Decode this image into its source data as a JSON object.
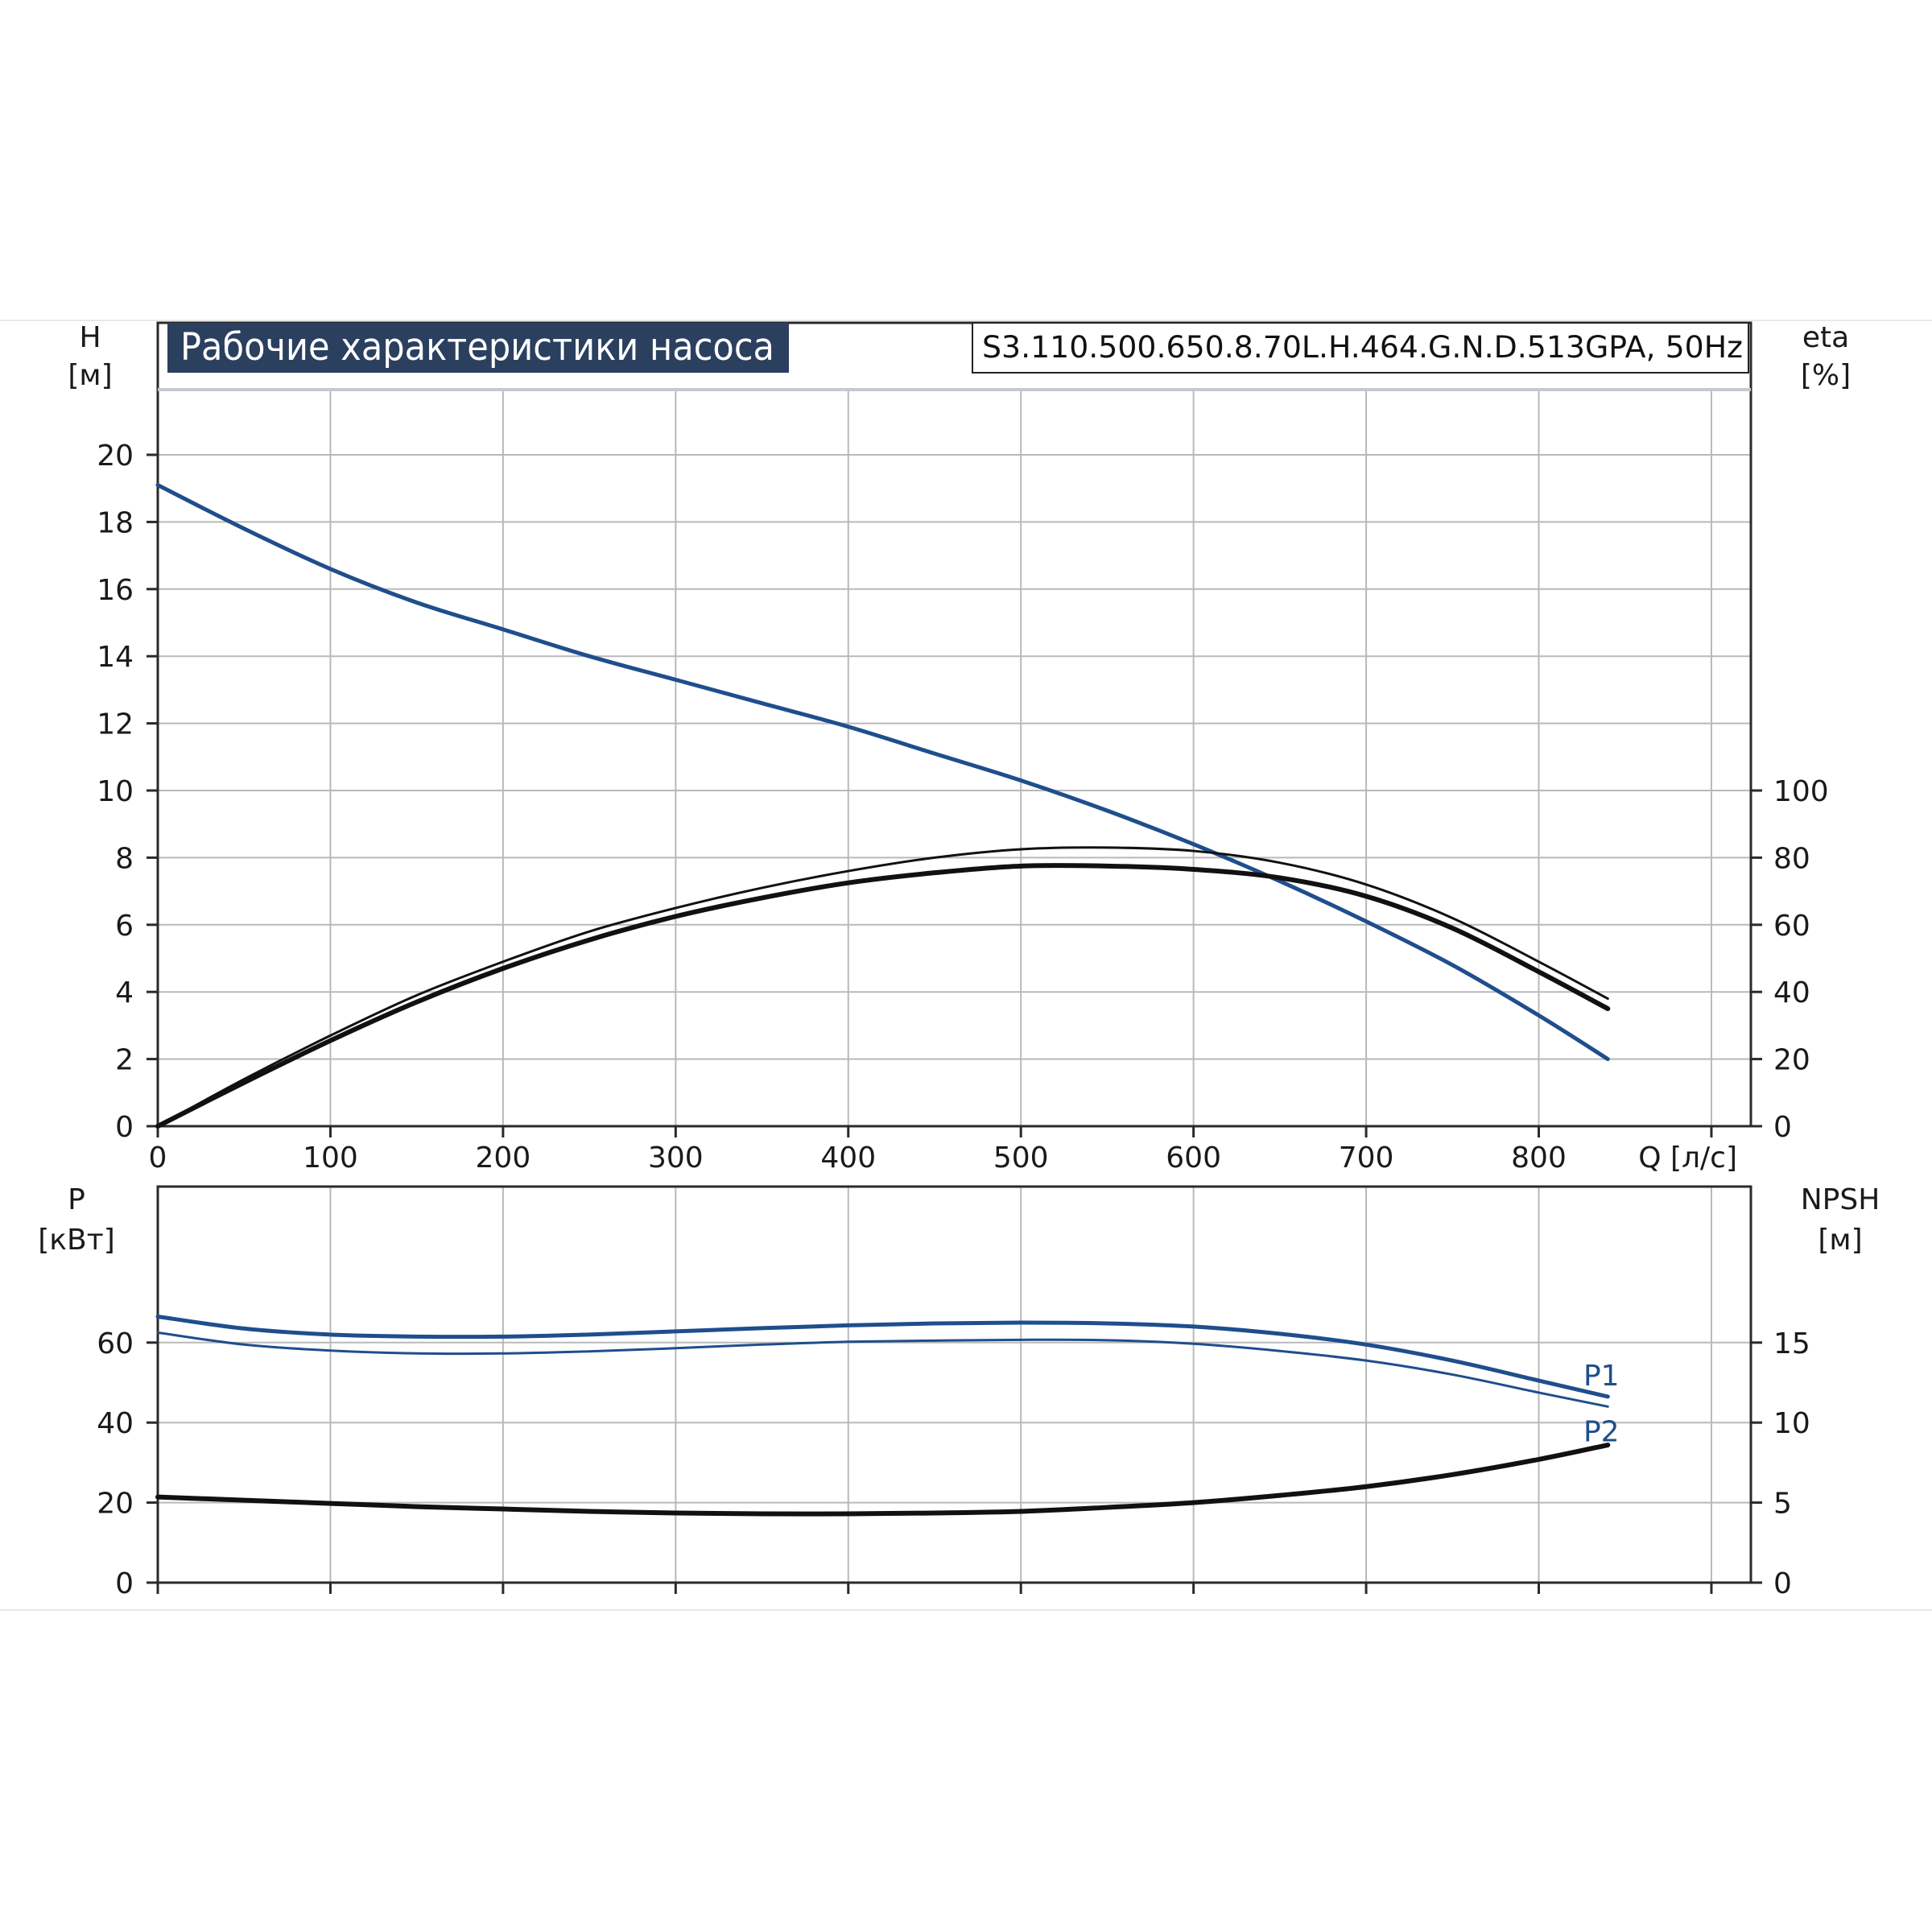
{
  "title": "Рабочие характеристики насоса",
  "model": "S3.110.500.650.8.70L.H.464.G.N.D.513GPA, 50Hz",
  "colors": {
    "blue": "#1f4e8c",
    "black": "#111111",
    "grid": "#b9b9b9",
    "title_bg": "#2b3f5f"
  },
  "chart_data": [
    {
      "type": "line",
      "panel": "head-efficiency",
      "xlabel": "Q [л/с]",
      "xlim": [
        0,
        900
      ],
      "x_ticks": [
        "0",
        "100",
        "200",
        "300",
        "400",
        "500",
        "600",
        "700",
        "800"
      ],
      "y_left": {
        "label_top": "H",
        "label_unit": "[м]",
        "ylim": [
          0,
          22
        ],
        "ticks": [
          "0",
          "2",
          "4",
          "6",
          "8",
          "10",
          "12",
          "14",
          "16",
          "18",
          "20"
        ]
      },
      "y_right": {
        "label_top": "eta",
        "label_unit": "[%]",
        "ylim": [
          0,
          220
        ],
        "ticks": [
          "0",
          "20",
          "40",
          "60",
          "80",
          "100"
        ]
      },
      "grid": true,
      "series": [
        {
          "axis": "left",
          "color": "blue",
          "width": 5,
          "x": [
            0,
            50,
            100,
            150,
            200,
            250,
            300,
            350,
            400,
            450,
            500,
            550,
            600,
            650,
            700,
            750,
            800,
            840
          ],
          "y": [
            19.1,
            17.8,
            16.6,
            15.6,
            14.8,
            14.0,
            13.3,
            12.6,
            11.9,
            11.1,
            10.3,
            9.4,
            8.4,
            7.3,
            6.1,
            4.8,
            3.3,
            2.0
          ]
        },
        {
          "axis": "right",
          "color": "black",
          "width": 3,
          "x": [
            0,
            50,
            100,
            150,
            200,
            250,
            300,
            350,
            400,
            450,
            500,
            550,
            600,
            650,
            700,
            750,
            800,
            840
          ],
          "y": [
            0,
            14,
            27,
            39,
            49,
            58,
            65,
            71,
            76,
            80,
            82.5,
            83,
            82,
            78.5,
            72,
            62,
            49,
            38
          ]
        },
        {
          "axis": "right",
          "color": "black",
          "width": 6,
          "x": [
            0,
            50,
            100,
            150,
            200,
            250,
            300,
            350,
            400,
            450,
            500,
            550,
            600,
            650,
            700,
            750,
            800,
            840
          ],
          "y": [
            0,
            13,
            25.5,
            37,
            47,
            55.5,
            62.5,
            68,
            72.5,
            75.5,
            77.5,
            77.5,
            76.5,
            74,
            68.5,
            59,
            46,
            35
          ]
        }
      ]
    },
    {
      "type": "line",
      "panel": "power-npsh",
      "xlim": [
        0,
        900
      ],
      "y_left": {
        "label_top": "P",
        "label_unit": "[кВт]",
        "ylim": [
          0,
          79
        ],
        "ticks": [
          "0",
          "20",
          "40",
          "60"
        ]
      },
      "y_right": {
        "label_top": "NPSH",
        "label_unit": "[м]",
        "ylim": [
          0,
          19.75
        ],
        "ticks": [
          "0",
          "5",
          "10",
          "15"
        ]
      },
      "grid": true,
      "series": [
        {
          "name": "P1",
          "axis": "left",
          "color": "blue",
          "width": 5,
          "x": [
            0,
            50,
            100,
            150,
            200,
            250,
            300,
            350,
            400,
            450,
            500,
            550,
            600,
            650,
            700,
            750,
            800,
            840
          ],
          "y": [
            66.5,
            63.5,
            62.0,
            61.5,
            61.5,
            62.0,
            62.8,
            63.6,
            64.3,
            64.8,
            65.0,
            64.8,
            64.0,
            62.2,
            59.5,
            55.5,
            50.5,
            46.5
          ]
        },
        {
          "name": "P2",
          "axis": "left",
          "color": "blue",
          "width": 3,
          "x": [
            0,
            50,
            100,
            150,
            200,
            250,
            300,
            350,
            400,
            450,
            500,
            550,
            600,
            650,
            700,
            750,
            800,
            840
          ],
          "y": [
            62.5,
            59.5,
            58.0,
            57.3,
            57.3,
            57.8,
            58.6,
            59.5,
            60.2,
            60.5,
            60.7,
            60.6,
            59.7,
            57.9,
            55.5,
            52.0,
            47.5,
            44.0
          ]
        },
        {
          "axis": "right",
          "color": "black",
          "width": 6,
          "x": [
            0,
            50,
            100,
            150,
            200,
            250,
            300,
            350,
            400,
            450,
            500,
            550,
            600,
            650,
            700,
            750,
            800,
            840
          ],
          "y": [
            5.35,
            5.15,
            4.95,
            4.75,
            4.6,
            4.45,
            4.35,
            4.3,
            4.3,
            4.35,
            4.45,
            4.7,
            5.0,
            5.45,
            6.0,
            6.75,
            7.7,
            8.6
          ]
        }
      ]
    }
  ]
}
